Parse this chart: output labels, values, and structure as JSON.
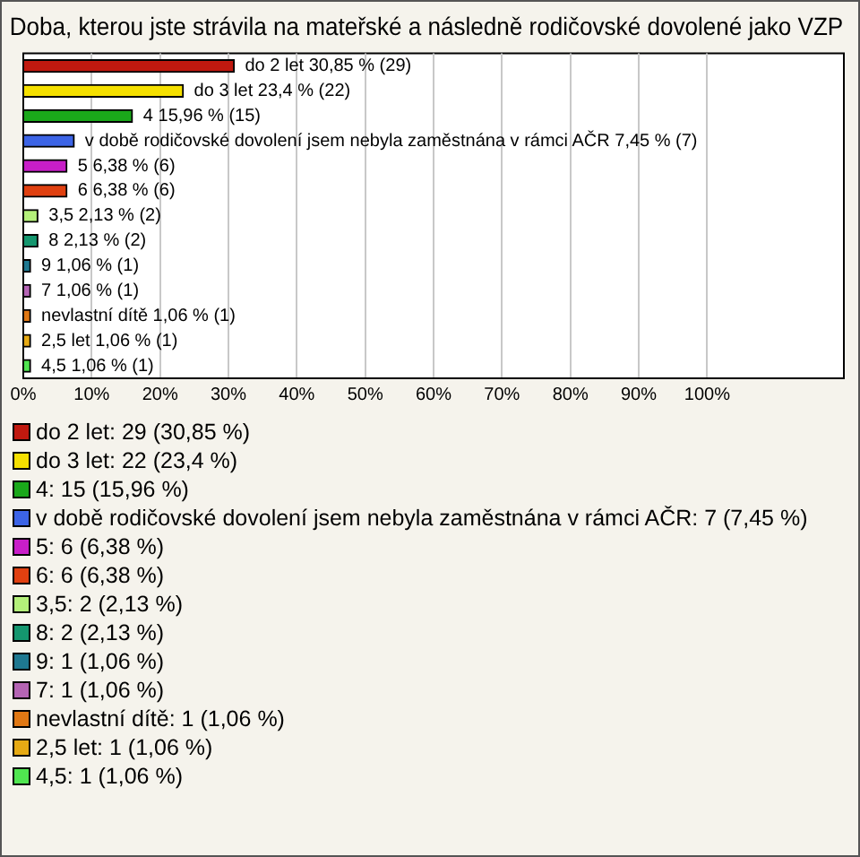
{
  "chart_data": {
    "type": "bar",
    "orientation": "horizontal",
    "stacked": true,
    "title": "Doba, kterou jste strávila na mateřské a následně rodičovské dovolené jako VZP",
    "categories": [
      null,
      null,
      null,
      null,
      null,
      null,
      null,
      null,
      null,
      null,
      null,
      null,
      null
    ],
    "series": [
      {
        "name": "do 2 let: 29 (30,85 %)",
        "color": "#c0190f",
        "values": [
          30.85,
          null,
          null,
          null,
          null,
          null,
          null,
          null,
          null,
          null,
          null,
          null,
          null
        ],
        "value_labels": [
          "do 2 let 30,85 % (29)",
          null,
          null,
          null,
          null,
          null,
          null,
          null,
          null,
          null,
          null,
          null,
          null
        ]
      },
      {
        "name": "do 3 let: 22 (23,4 %)",
        "color": "#f5e000",
        "values": [
          null,
          23.4,
          null,
          null,
          null,
          null,
          null,
          null,
          null,
          null,
          null,
          null,
          null
        ],
        "value_labels": [
          null,
          "do 3 let 23,4 % (22)",
          null,
          null,
          null,
          null,
          null,
          null,
          null,
          null,
          null,
          null,
          null
        ]
      },
      {
        "name": "4: 15 (15,96 %)",
        "color": "#1aa81a",
        "values": [
          null,
          null,
          15.96,
          null,
          null,
          null,
          null,
          null,
          null,
          null,
          null,
          null,
          null
        ],
        "value_labels": [
          null,
          null,
          "4 15,96 % (15)",
          null,
          null,
          null,
          null,
          null,
          null,
          null,
          null,
          null,
          null
        ]
      },
      {
        "name": "v době rodičovské dovolení jsem nebyla zaměstnána v rámci AČR: 7 (7,45 %)",
        "color": "#3c64e6",
        "values": [
          null,
          null,
          null,
          7.45,
          null,
          null,
          null,
          null,
          null,
          null,
          null,
          null,
          null
        ],
        "value_labels": [
          null,
          null,
          null,
          "v době rodičovské dovolení jsem nebyla zaměstnána v rámci AČR 7,45 % (7)",
          null,
          null,
          null,
          null,
          null,
          null,
          null,
          null,
          null
        ]
      },
      {
        "name": "5: 6 (6,38 %)",
        "color": "#c81ec8",
        "values": [
          null,
          null,
          null,
          null,
          6.38,
          null,
          null,
          null,
          null,
          null,
          null,
          null,
          null
        ],
        "value_labels": [
          null,
          null,
          null,
          null,
          "5 6,38 % (6)",
          null,
          null,
          null,
          null,
          null,
          null,
          null,
          null
        ]
      },
      {
        "name": "6: 6 (6,38 %)",
        "color": "#e04010",
        "values": [
          null,
          null,
          null,
          null,
          null,
          6.38,
          null,
          null,
          null,
          null,
          null,
          null,
          null
        ],
        "value_labels": [
          null,
          null,
          null,
          null,
          null,
          "6 6,38 % (6)",
          null,
          null,
          null,
          null,
          null,
          null,
          null
        ]
      },
      {
        "name": "3,5: 2 (2,13 %)",
        "color": "#b4f07a",
        "values": [
          null,
          null,
          null,
          null,
          null,
          null,
          2.13,
          null,
          null,
          null,
          null,
          null,
          null
        ],
        "value_labels": [
          null,
          null,
          null,
          null,
          null,
          null,
          "3,5 2,13 % (2)",
          null,
          null,
          null,
          null,
          null,
          null
        ]
      },
      {
        "name": "8: 2 (2,13 %)",
        "color": "#14966e",
        "values": [
          null,
          null,
          null,
          null,
          null,
          null,
          null,
          2.13,
          null,
          null,
          null,
          null,
          null
        ],
        "value_labels": [
          null,
          null,
          null,
          null,
          null,
          null,
          null,
          "8 2,13 % (2)",
          null,
          null,
          null,
          null,
          null
        ]
      },
      {
        "name": "9: 1 (1,06 %)",
        "color": "#1e7890",
        "values": [
          null,
          null,
          null,
          null,
          null,
          null,
          null,
          null,
          1.06,
          null,
          null,
          null,
          null
        ],
        "value_labels": [
          null,
          null,
          null,
          null,
          null,
          null,
          null,
          null,
          "9 1,06 % (1)",
          null,
          null,
          null,
          null
        ]
      },
      {
        "name": "7: 1 (1,06 %)",
        "color": "#b464b4",
        "values": [
          null,
          null,
          null,
          null,
          null,
          null,
          null,
          null,
          null,
          1.06,
          null,
          null,
          null
        ],
        "value_labels": [
          null,
          null,
          null,
          null,
          null,
          null,
          null,
          null,
          null,
          "7 1,06 % (1)",
          null,
          null,
          null
        ]
      },
      {
        "name": "nevlastní dítě: 1 (1,06 %)",
        "color": "#e07814",
        "values": [
          null,
          null,
          null,
          null,
          null,
          null,
          null,
          null,
          null,
          null,
          1.06,
          null,
          null
        ],
        "value_labels": [
          null,
          null,
          null,
          null,
          null,
          null,
          null,
          null,
          null,
          null,
          "nevlastní dítě 1,06 % (1)",
          null,
          null
        ]
      },
      {
        "name": "2,5 let: 1 (1,06 %)",
        "color": "#e6aa14",
        "values": [
          null,
          null,
          null,
          null,
          null,
          null,
          null,
          null,
          null,
          null,
          null,
          1.06,
          null
        ],
        "value_labels": [
          null,
          null,
          null,
          null,
          null,
          null,
          null,
          null,
          null,
          null,
          null,
          "2,5 let 1,06 % (1)",
          null
        ]
      },
      {
        "name": "4,5: 1 (1,06 %)",
        "color": "#50e650",
        "values": [
          null,
          null,
          null,
          null,
          null,
          null,
          null,
          null,
          null,
          null,
          null,
          null,
          1.06
        ],
        "value_labels": [
          null,
          null,
          null,
          null,
          null,
          null,
          null,
          null,
          null,
          null,
          null,
          null,
          "4,5 1,06 % (1)"
        ]
      }
    ],
    "xlim": [
      0,
      120
    ],
    "xticks": [
      {
        "value": 0,
        "label": "0%"
      },
      {
        "value": 10,
        "label": "10%"
      },
      {
        "value": 20,
        "label": "20%"
      },
      {
        "value": 30,
        "label": "30%"
      },
      {
        "value": 40,
        "label": "40%"
      },
      {
        "value": 50,
        "label": "50%"
      },
      {
        "value": 60,
        "label": "60%"
      },
      {
        "value": 70,
        "label": "70%"
      },
      {
        "value": 80,
        "label": "80%"
      },
      {
        "value": 90,
        "label": "90%"
      },
      {
        "value": 100,
        "label": "100%"
      }
    ],
    "grid": "x",
    "legend": "bottom",
    "tick_labels": "x"
  }
}
